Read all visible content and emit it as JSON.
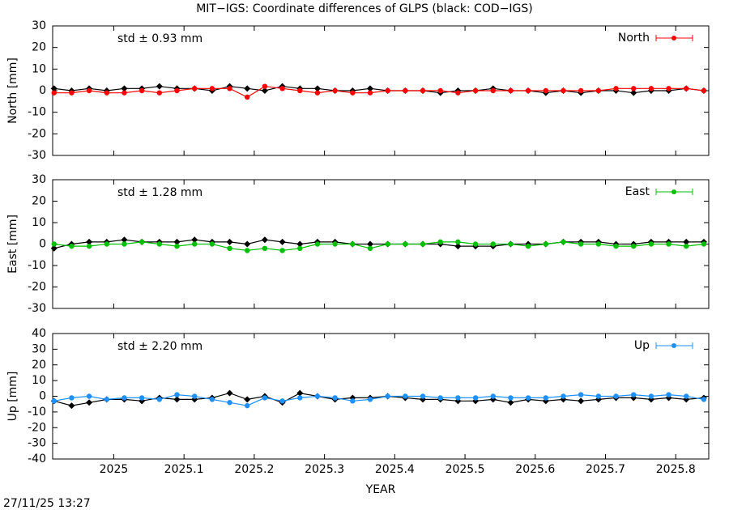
{
  "title": "MIT−IGS: Coordinate differences of GLPS (black: COD−IGS)",
  "x_label": "YEAR",
  "timestamp": "27/11/25 13:27",
  "chart_data": [
    {
      "type": "line",
      "y_label": "North [mm]",
      "annotation": "std ± 0.93 mm",
      "legend": "top-right",
      "xlim": [
        2024.913,
        2025.847
      ],
      "xticks": [
        2025,
        2025.1,
        2025.2,
        2025.3,
        2025.4,
        2025.5,
        2025.6,
        2025.7,
        2025.8
      ],
      "ylim": [
        -30,
        30
      ],
      "yticks": [
        -30,
        -20,
        -10,
        0,
        10,
        20,
        30
      ],
      "x": [
        2024.915,
        2024.94,
        2024.965,
        2024.99,
        2025.015,
        2025.04,
        2025.065,
        2025.09,
        2025.115,
        2025.14,
        2025.165,
        2025.19,
        2025.215,
        2025.24,
        2025.265,
        2025.29,
        2025.315,
        2025.34,
        2025.365,
        2025.39,
        2025.415,
        2025.44,
        2025.465,
        2025.49,
        2025.515,
        2025.54,
        2025.565,
        2025.59,
        2025.615,
        2025.64,
        2025.665,
        2025.69,
        2025.715,
        2025.74,
        2025.765,
        2025.79,
        2025.815,
        2025.84
      ],
      "series": [
        {
          "color": "#000000",
          "values": [
            1,
            0,
            1,
            0,
            1,
            1,
            2,
            1,
            1,
            0,
            2,
            1,
            0,
            2,
            1,
            1,
            0,
            0,
            1,
            0,
            0,
            0,
            -1,
            0,
            0,
            1,
            0,
            0,
            -1,
            0,
            -1,
            0,
            0,
            -1,
            0,
            0,
            1,
            0
          ]
        },
        {
          "name": "North",
          "color": "#ff0000",
          "values": [
            -1,
            -1,
            0,
            -1,
            -1,
            0,
            -1,
            0,
            1,
            1,
            1,
            -3,
            2,
            1,
            0,
            -1,
            0,
            -1,
            -1,
            0,
            0,
            0,
            0,
            -1,
            0,
            0,
            0,
            0,
            0,
            0,
            0,
            0,
            1,
            1,
            1,
            1,
            1,
            0
          ]
        }
      ]
    },
    {
      "type": "line",
      "y_label": "East [mm]",
      "annotation": "std ± 1.28 mm",
      "legend": "top-right",
      "xlim": [
        2024.913,
        2025.847
      ],
      "xticks": [
        2025,
        2025.1,
        2025.2,
        2025.3,
        2025.4,
        2025.5,
        2025.6,
        2025.7,
        2025.8
      ],
      "ylim": [
        -30,
        30
      ],
      "yticks": [
        -30,
        -20,
        -10,
        0,
        10,
        20,
        30
      ],
      "x": [
        2024.915,
        2024.94,
        2024.965,
        2024.99,
        2025.015,
        2025.04,
        2025.065,
        2025.09,
        2025.115,
        2025.14,
        2025.165,
        2025.19,
        2025.215,
        2025.24,
        2025.265,
        2025.29,
        2025.315,
        2025.34,
        2025.365,
        2025.39,
        2025.415,
        2025.44,
        2025.465,
        2025.49,
        2025.515,
        2025.54,
        2025.565,
        2025.59,
        2025.615,
        2025.64,
        2025.665,
        2025.69,
        2025.715,
        2025.74,
        2025.765,
        2025.79,
        2025.815,
        2025.84
      ],
      "series": [
        {
          "color": "#000000",
          "values": [
            -2,
            0,
            1,
            1,
            2,
            1,
            1,
            1,
            2,
            1,
            1,
            0,
            2,
            1,
            0,
            1,
            1,
            0,
            0,
            0,
            0,
            0,
            0,
            -1,
            -1,
            -1,
            0,
            0,
            0,
            1,
            1,
            1,
            0,
            0,
            1,
            1,
            1,
            1
          ]
        },
        {
          "name": "East",
          "color": "#00c000",
          "values": [
            0,
            -1,
            -1,
            0,
            0,
            1,
            0,
            -1,
            0,
            0,
            -2,
            -3,
            -2,
            -3,
            -2,
            0,
            0,
            0,
            -2,
            0,
            0,
            0,
            1,
            1,
            0,
            0,
            0,
            -1,
            0,
            1,
            0,
            0,
            -1,
            -1,
            0,
            0,
            -1,
            0
          ]
        }
      ]
    },
    {
      "type": "line",
      "y_label": "Up [mm]",
      "annotation": "std ± 2.20 mm",
      "legend": "top-right",
      "xlim": [
        2024.913,
        2025.847
      ],
      "xticks": [
        2025,
        2025.1,
        2025.2,
        2025.3,
        2025.4,
        2025.5,
        2025.6,
        2025.7,
        2025.8
      ],
      "ylim": [
        -40,
        40
      ],
      "yticks": [
        -40,
        -30,
        -20,
        -10,
        0,
        10,
        20,
        30,
        40
      ],
      "x": [
        2024.915,
        2024.94,
        2024.965,
        2024.99,
        2025.015,
        2025.04,
        2025.065,
        2025.09,
        2025.115,
        2025.14,
        2025.165,
        2025.19,
        2025.215,
        2025.24,
        2025.265,
        2025.29,
        2025.315,
        2025.34,
        2025.365,
        2025.39,
        2025.415,
        2025.44,
        2025.465,
        2025.49,
        2025.515,
        2025.54,
        2025.565,
        2025.59,
        2025.615,
        2025.64,
        2025.665,
        2025.69,
        2025.715,
        2025.74,
        2025.765,
        2025.79,
        2025.815,
        2025.84
      ],
      "series": [
        {
          "color": "#000000",
          "values": [
            -3,
            -6,
            -4,
            -2,
            -2,
            -3,
            -1,
            -2,
            -2,
            -1,
            2,
            -2,
            0,
            -4,
            2,
            0,
            -2,
            -1,
            -1,
            0,
            -1,
            -2,
            -2,
            -3,
            -3,
            -2,
            -4,
            -2,
            -3,
            -2,
            -3,
            -2,
            -1,
            -1,
            -2,
            -1,
            -2,
            -1
          ]
        },
        {
          "name": "Up",
          "color": "#1e90ff",
          "values": [
            -3,
            -1,
            0,
            -2,
            -1,
            -1,
            -2,
            1,
            0,
            -2,
            -4,
            -6,
            -1,
            -3,
            -1,
            0,
            -1,
            -3,
            -2,
            0,
            0,
            0,
            -1,
            -1,
            -1,
            0,
            -1,
            -1,
            -1,
            0,
            1,
            0,
            0,
            1,
            0,
            1,
            0,
            -2
          ]
        }
      ]
    }
  ]
}
